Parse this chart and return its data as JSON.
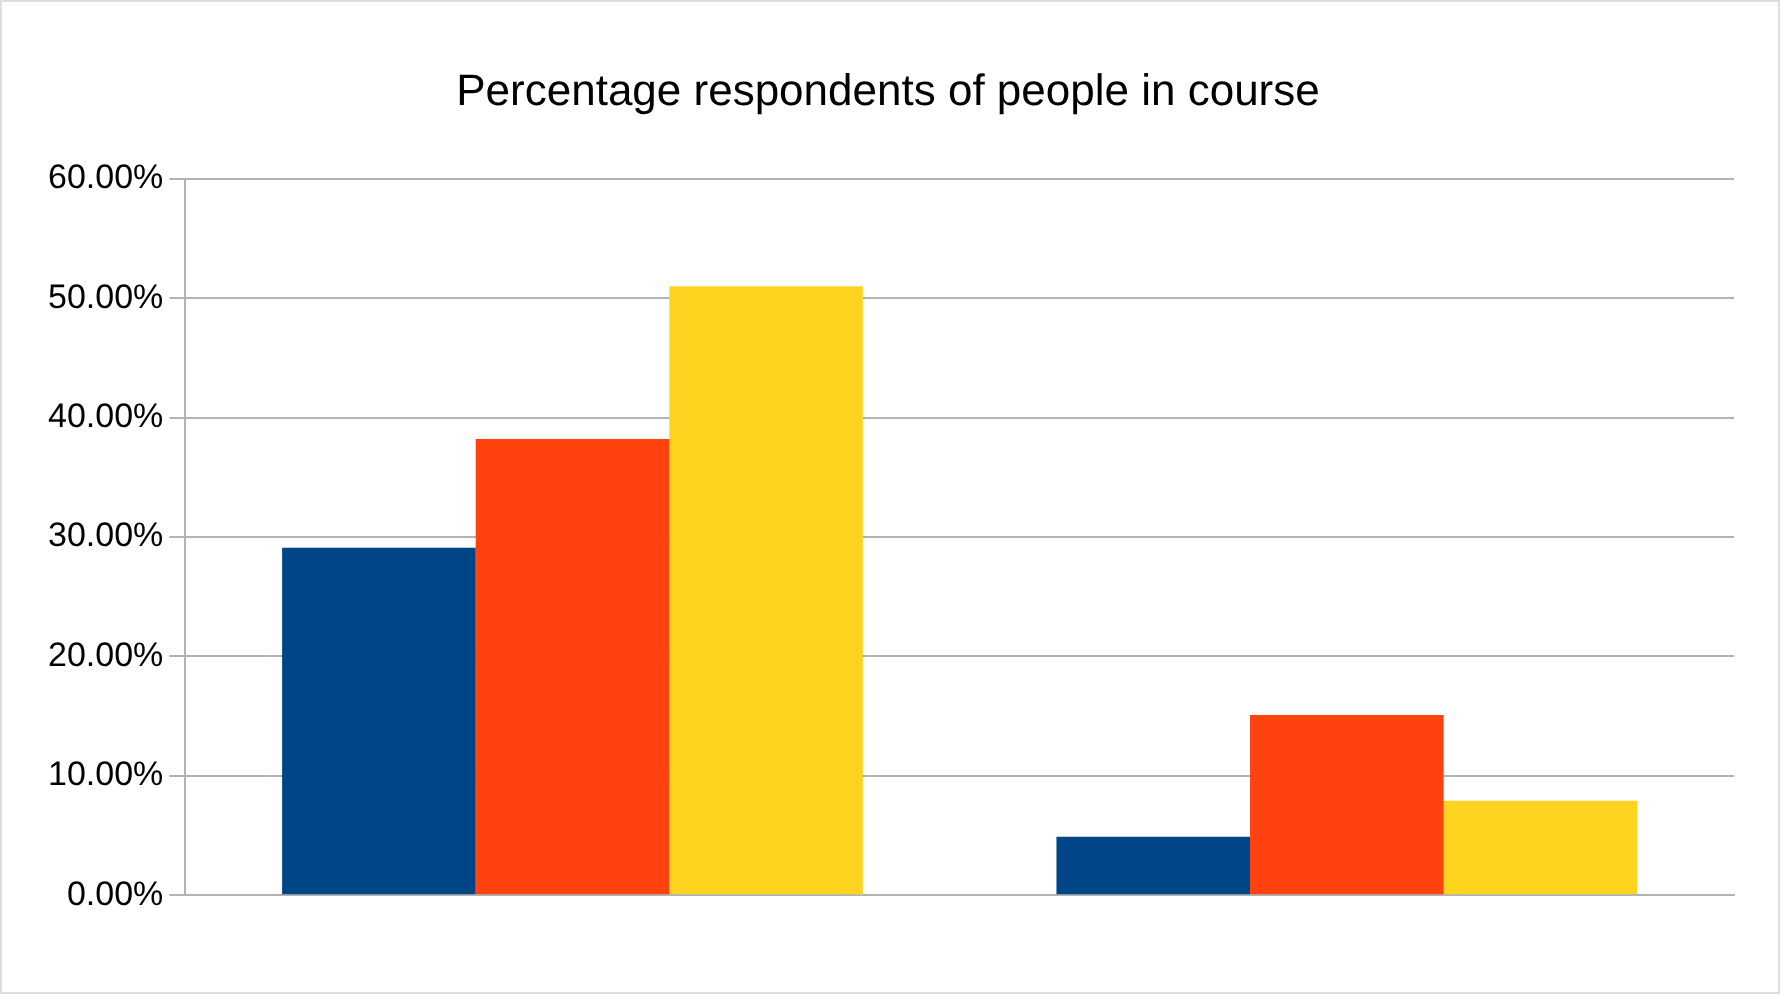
{
  "chart_data": {
    "type": "bar",
    "title": "Percentage respondents of people in course",
    "categories": [
      null,
      null
    ],
    "series": [
      {
        "color": "#004586",
        "values": [
          29.1,
          4.9
        ]
      },
      {
        "color": "#ff420e",
        "values": [
          38.2,
          15.1
        ]
      },
      {
        "color": "#ffd320",
        "values": [
          51.0,
          7.9
        ]
      }
    ],
    "ylim": [
      0,
      60
    ],
    "yticks": [
      {
        "value": 0,
        "label": "0.00%"
      },
      {
        "value": 10,
        "label": "10.00%"
      },
      {
        "value": 20,
        "label": "20.00%"
      },
      {
        "value": 30,
        "label": "30.00%"
      },
      {
        "value": 40,
        "label": "40.00%"
      },
      {
        "value": 50,
        "label": "50.00%"
      },
      {
        "value": 60,
        "label": "60.00%"
      }
    ],
    "grid": "y",
    "legend": false
  }
}
